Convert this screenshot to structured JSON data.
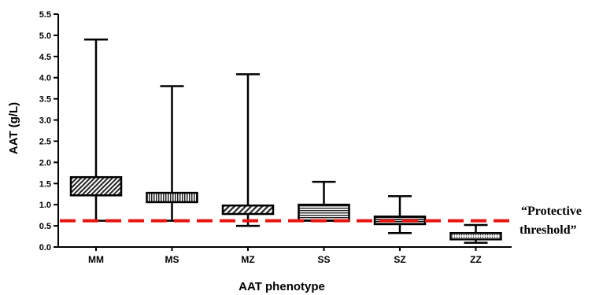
{
  "chart_data": {
    "type": "boxplot",
    "xlabel": "AAT phenotype",
    "ylabel": "AAT (g/L)",
    "ylim": [
      0,
      5.5
    ],
    "yticks": [
      "0.0",
      "0.5",
      "1.0",
      "1.5",
      "2.0",
      "2.5",
      "3.0",
      "3.5",
      "4.0",
      "4.5",
      "5.0",
      "5.5"
    ],
    "categories": [
      "MM",
      "MS",
      "MZ",
      "SS",
      "SZ",
      "ZZ"
    ],
    "boxes": [
      {
        "category": "MM",
        "min": 0.62,
        "q1": 1.22,
        "q3": 1.65,
        "max": 4.9,
        "pattern": "diag-dense"
      },
      {
        "category": "MS",
        "min": 0.62,
        "q1": 1.06,
        "q3": 1.28,
        "max": 3.8,
        "pattern": "vertical"
      },
      {
        "category": "MZ",
        "min": 0.5,
        "q1": 0.78,
        "q3": 0.98,
        "max": 4.08,
        "pattern": "diag"
      },
      {
        "category": "SS",
        "min": 0.62,
        "q1": 0.62,
        "q3": 1.0,
        "max": 1.54,
        "pattern": "horizontal"
      },
      {
        "category": "SZ",
        "min": 0.33,
        "q1": 0.54,
        "q3": 0.72,
        "max": 1.2,
        "pattern": "horizontal-dark"
      },
      {
        "category": "ZZ",
        "min": 0.1,
        "q1": 0.18,
        "q3": 0.33,
        "max": 0.52,
        "pattern": "dots"
      }
    ],
    "reference_line": {
      "value": 0.62,
      "color": "#e8130f",
      "style": "dashed"
    },
    "annotation": {
      "line1": "“Protective",
      "line2": "threshold”"
    },
    "grid": false
  }
}
